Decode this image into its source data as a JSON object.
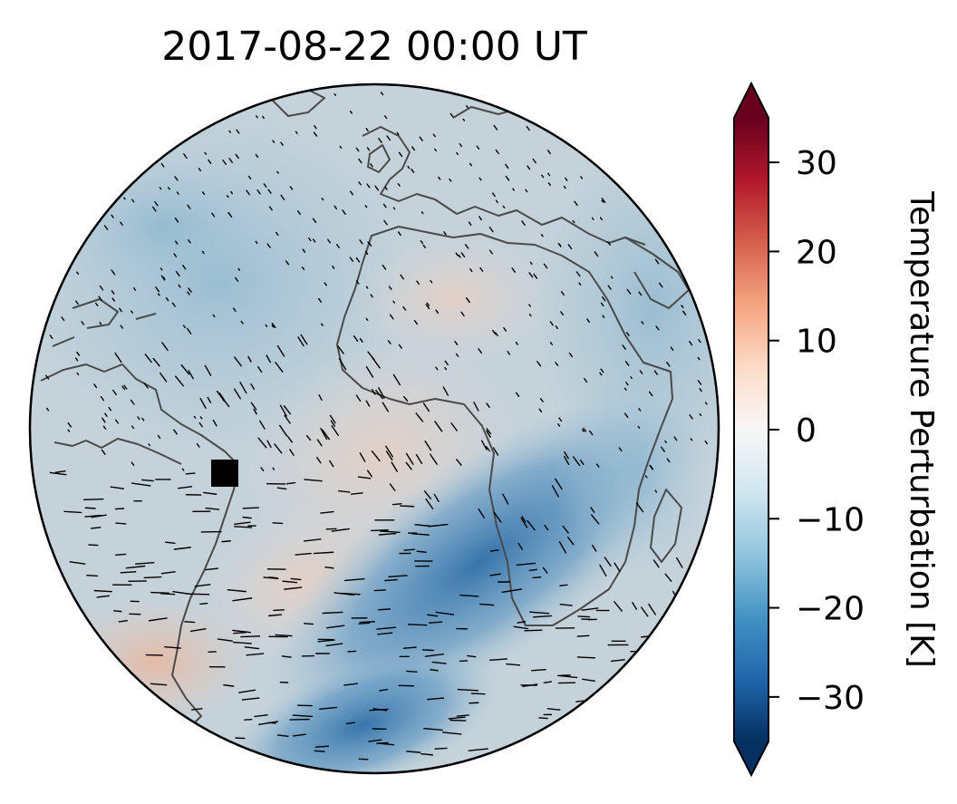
{
  "title": "2017-08-22  00:00 UT",
  "colorbar": {
    "label": "Temperature Perturbation [K]",
    "ticks": [
      {
        "value": 30,
        "label": "30"
      },
      {
        "value": 20,
        "label": "20"
      },
      {
        "value": 10,
        "label": "10"
      },
      {
        "value": 0,
        "label": "0"
      },
      {
        "value": -10,
        "label": "−10"
      },
      {
        "value": -20,
        "label": "−20"
      },
      {
        "value": -30,
        "label": "−30"
      }
    ],
    "range": [
      -35,
      35
    ],
    "extend": "both",
    "colormap": "RdBu_r",
    "colors": [
      "#053061",
      "#2166ac",
      "#4393c3",
      "#92c5de",
      "#d1e5f0",
      "#f7f7f7",
      "#fddbc7",
      "#f4a582",
      "#d6604d",
      "#b2182b",
      "#67001f"
    ]
  },
  "map": {
    "projection": "orthographic",
    "features": [
      "coastlines",
      "wind vectors",
      "temperature perturbation field"
    ],
    "marker": {
      "shape": "square",
      "color": "#000000",
      "location": "eastern Brazil"
    }
  }
}
